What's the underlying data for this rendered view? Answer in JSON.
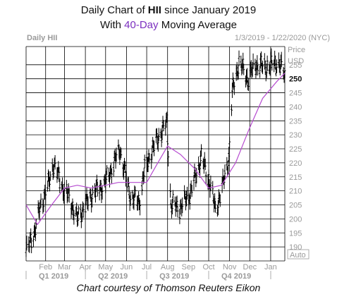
{
  "title": {
    "line1_prefix": "Daily Chart of ",
    "ticker": "HII",
    "line1_suffix": " since January 2019",
    "line2_prefix": "With ",
    "ma_label": "40-Day",
    "line2_suffix": " Moving Average"
  },
  "header": {
    "left": "Daily HII",
    "right": "1/3/2019 - 1/22/2020 (NYC)"
  },
  "credit": "Chart courtesy of Thomson Reuters Eikon",
  "colors": {
    "price": "#000000",
    "ma": "#b64bd0",
    "grid": "#000000",
    "highlight": "#7b2fbf",
    "axis_text": "#9a9a9a"
  },
  "chart_data": {
    "type": "line",
    "series": [
      {
        "kind": "ohlc-bars",
        "monthly_path": [
          {
            "date": "2019-01-03",
            "value": 188
          },
          {
            "date": "2019-01-15",
            "value": 195
          },
          {
            "date": "2019-01-25",
            "value": 205
          },
          {
            "date": "2019-02-05",
            "value": 212
          },
          {
            "date": "2019-02-13",
            "value": 220
          },
          {
            "date": "2019-02-25",
            "value": 212
          },
          {
            "date": "2019-03-07",
            "value": 208
          },
          {
            "date": "2019-03-20",
            "value": 200
          },
          {
            "date": "2019-04-01",
            "value": 205
          },
          {
            "date": "2019-04-15",
            "value": 210
          },
          {
            "date": "2019-04-29",
            "value": 212
          },
          {
            "date": "2019-05-10",
            "value": 218
          },
          {
            "date": "2019-05-22",
            "value": 225
          },
          {
            "date": "2019-05-31",
            "value": 215
          },
          {
            "date": "2019-06-07",
            "value": 208
          },
          {
            "date": "2019-06-20",
            "value": 206
          },
          {
            "date": "2019-06-28",
            "value": 218
          },
          {
            "date": "2019-07-10",
            "value": 225
          },
          {
            "date": "2019-07-20",
            "value": 230
          },
          {
            "date": "2019-07-31",
            "value": 234
          },
          {
            "date": "2019-08-06",
            "value": 205
          },
          {
            "date": "2019-08-20",
            "value": 204
          },
          {
            "date": "2019-09-05",
            "value": 210
          },
          {
            "date": "2019-09-20",
            "value": 222
          },
          {
            "date": "2019-10-04",
            "value": 212
          },
          {
            "date": "2019-10-11",
            "value": 203
          },
          {
            "date": "2019-10-22",
            "value": 212
          },
          {
            "date": "2019-10-31",
            "value": 222
          },
          {
            "date": "2019-11-05",
            "value": 245
          },
          {
            "date": "2019-11-15",
            "value": 256
          },
          {
            "date": "2019-11-28",
            "value": 250
          },
          {
            "date": "2019-12-10",
            "value": 255
          },
          {
            "date": "2019-12-24",
            "value": 254
          },
          {
            "date": "2020-01-10",
            "value": 256
          },
          {
            "date": "2020-01-22",
            "value": 252
          }
        ]
      },
      {
        "kind": "moving-average",
        "points": [
          {
            "date": "2019-01-03",
            "value": 205
          },
          {
            "date": "2019-01-20",
            "value": 198
          },
          {
            "date": "2019-02-10",
            "value": 205
          },
          {
            "date": "2019-03-01",
            "value": 211
          },
          {
            "date": "2019-03-20",
            "value": 212
          },
          {
            "date": "2019-04-10",
            "value": 211
          },
          {
            "date": "2019-05-01",
            "value": 212
          },
          {
            "date": "2019-05-20",
            "value": 213
          },
          {
            "date": "2019-06-10",
            "value": 213
          },
          {
            "date": "2019-07-01",
            "value": 213
          },
          {
            "date": "2019-07-15",
            "value": 219
          },
          {
            "date": "2019-08-01",
            "value": 226
          },
          {
            "date": "2019-08-20",
            "value": 223
          },
          {
            "date": "2019-09-10",
            "value": 218
          },
          {
            "date": "2019-10-01",
            "value": 211
          },
          {
            "date": "2019-10-20",
            "value": 212
          },
          {
            "date": "2019-11-10",
            "value": 220
          },
          {
            "date": "2019-11-30",
            "value": 232
          },
          {
            "date": "2019-12-20",
            "value": 243
          },
          {
            "date": "2020-01-10",
            "value": 249
          },
          {
            "date": "2020-01-22",
            "value": 252
          }
        ]
      }
    ],
    "x_range": [
      "2019-01-03",
      "2020-01-22"
    ],
    "month_labels": [
      {
        "label": "Feb",
        "date": "2019-02-01"
      },
      {
        "label": "Mar",
        "date": "2019-03-01"
      },
      {
        "label": "Apr",
        "date": "2019-04-01"
      },
      {
        "label": "May",
        "date": "2019-05-01"
      },
      {
        "label": "Jun",
        "date": "2019-06-01"
      },
      {
        "label": "Jul",
        "date": "2019-07-01"
      },
      {
        "label": "Aug",
        "date": "2019-08-01"
      },
      {
        "label": "Sep",
        "date": "2019-09-01"
      },
      {
        "label": "Oct",
        "date": "2019-10-01"
      },
      {
        "label": "Nov",
        "date": "2019-11-01"
      },
      {
        "label": "Dec",
        "date": "2019-12-01"
      },
      {
        "label": "Jan",
        "date": "2020-01-01"
      }
    ],
    "quarter_labels": [
      {
        "label": "Q1 2019",
        "date": "2019-01-01"
      },
      {
        "label": "Q2 2019",
        "date": "2019-04-01"
      },
      {
        "label": "Q3 2019",
        "date": "2019-07-01"
      },
      {
        "label": "Q4 2019",
        "date": "2019-10-01"
      }
    ],
    "y_axis": {
      "title": "Price",
      "unit": "USD",
      "min": 185,
      "max": 262.5,
      "ticks": [
        190,
        195,
        200,
        205,
        210,
        215,
        220,
        225,
        230,
        235,
        240,
        245,
        250,
        255
      ],
      "highlight_tick": 250,
      "scale_label": "Auto"
    },
    "grid": true
  }
}
